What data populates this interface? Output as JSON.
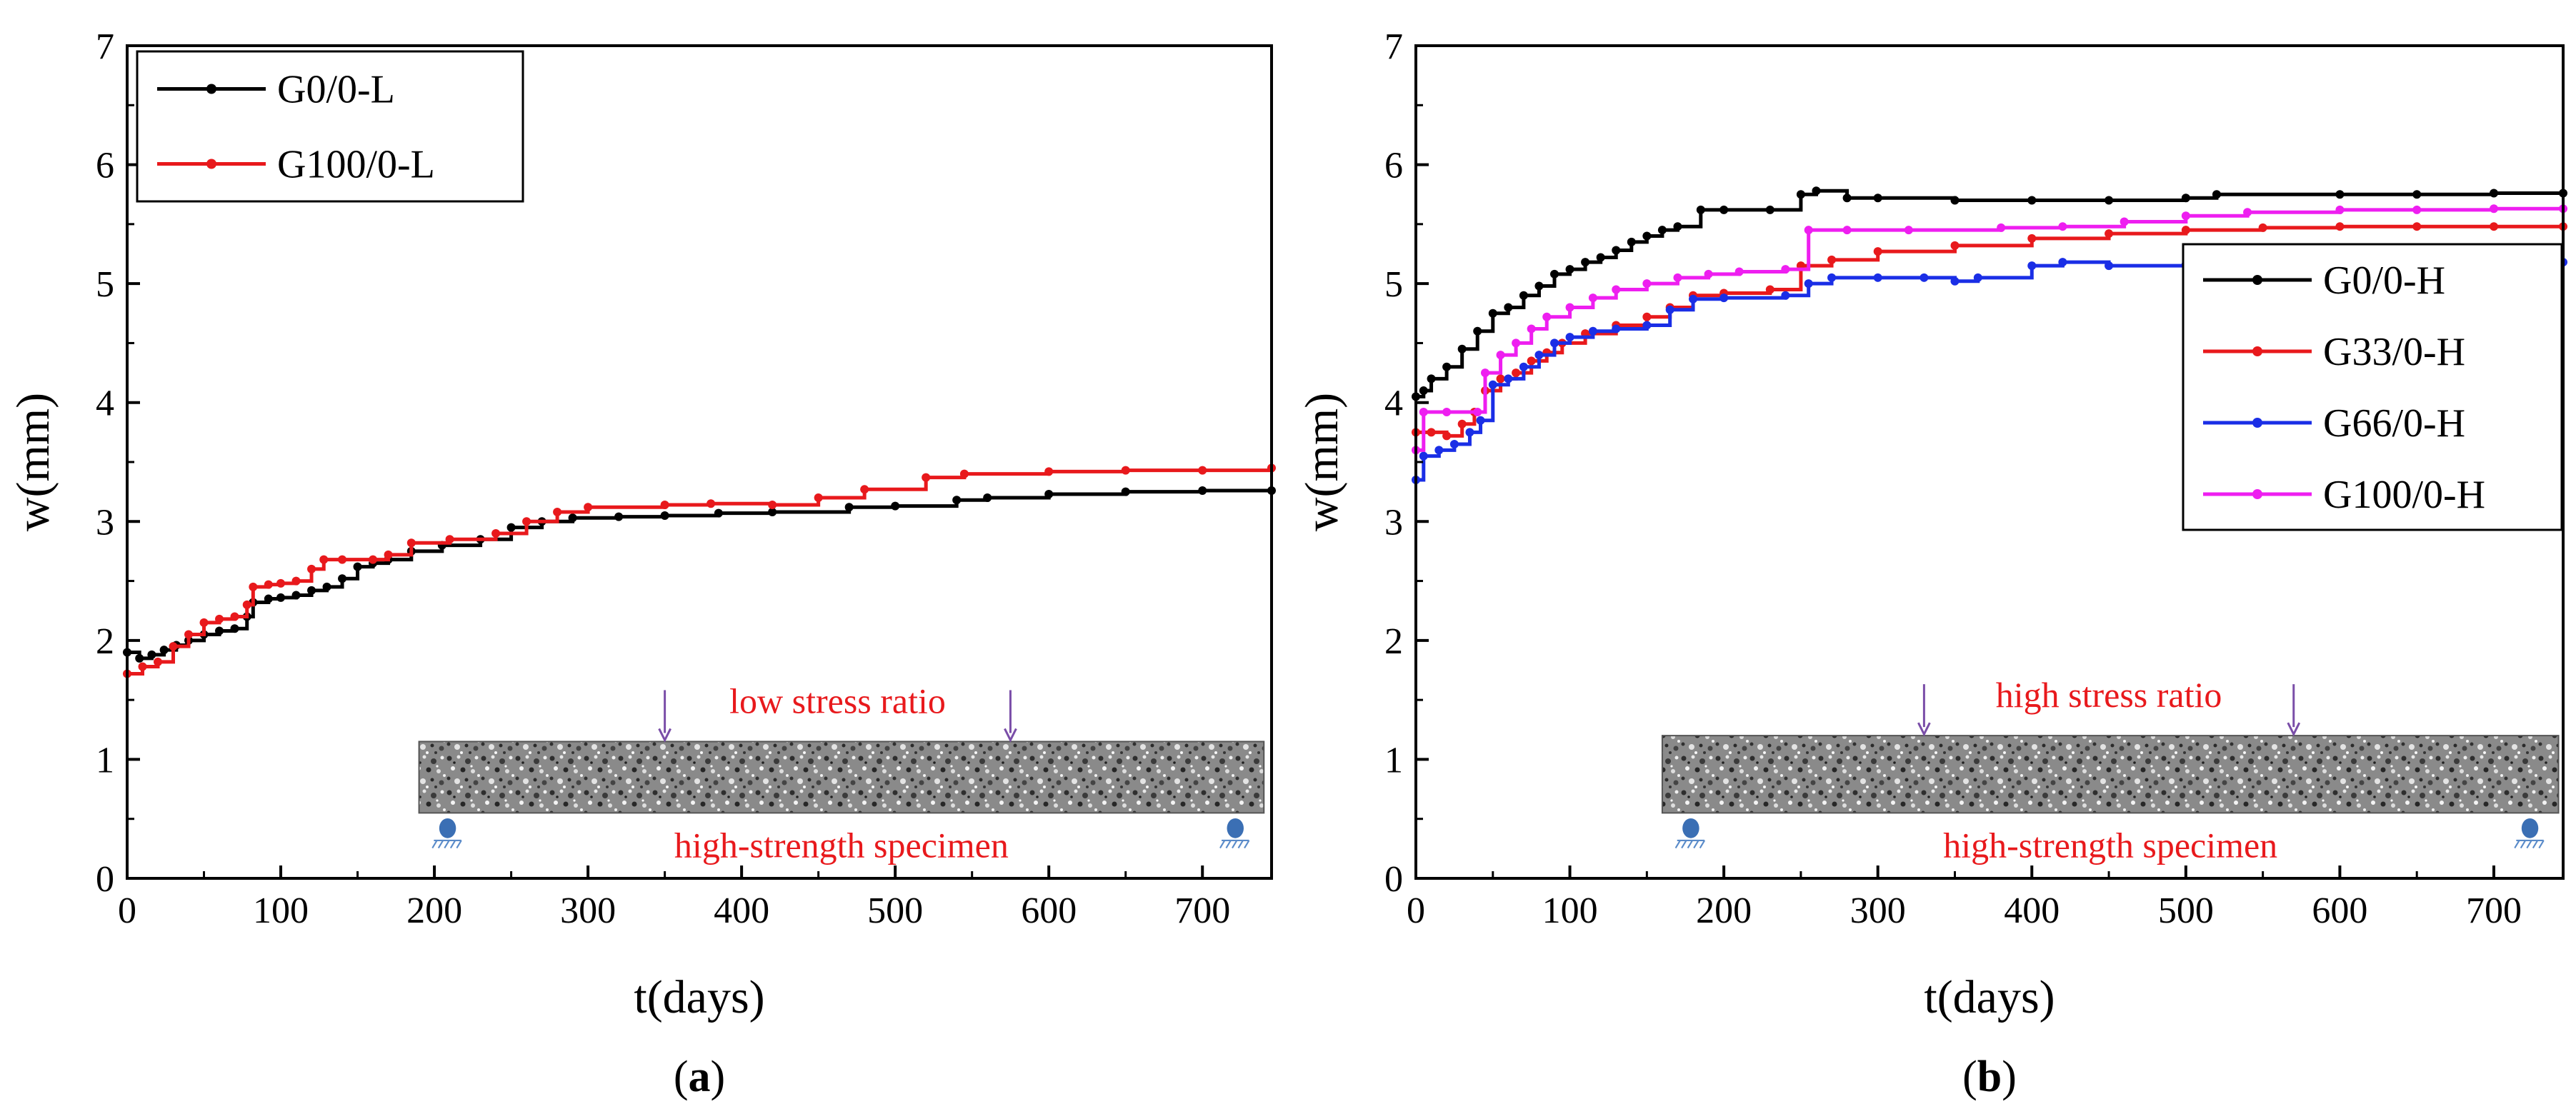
{
  "chart_data": [
    {
      "type": "line",
      "panel_label": "a",
      "xlabel": "t(days)",
      "ylabel": "w(mm)",
      "xlim": [
        0,
        745
      ],
      "ylim": [
        0,
        7
      ],
      "xticks": [
        0,
        100,
        200,
        300,
        400,
        500,
        600,
        700
      ],
      "yticks": [
        0,
        1,
        2,
        3,
        4,
        5,
        6,
        7
      ],
      "grid": false,
      "legend_position": "top-left",
      "inset": {
        "top_text": "low stress ratio",
        "bottom_text": "high-strength  specimen",
        "x_range": [
          190,
          740
        ],
        "y_range": [
          0.55,
          1.15
        ],
        "load_x": [
          350,
          575
        ]
      },
      "series": [
        {
          "name": "G0/0-L",
          "color": "#000000",
          "points": [
            [
              0,
              1.9
            ],
            [
              8,
              1.85
            ],
            [
              16,
              1.88
            ],
            [
              24,
              1.92
            ],
            [
              32,
              1.96
            ],
            [
              40,
              2.0
            ],
            [
              50,
              2.05
            ],
            [
              60,
              2.08
            ],
            [
              70,
              2.1
            ],
            [
              78,
              2.2
            ],
            [
              82,
              2.32
            ],
            [
              92,
              2.35
            ],
            [
              100,
              2.36
            ],
            [
              110,
              2.38
            ],
            [
              120,
              2.42
            ],
            [
              130,
              2.45
            ],
            [
              140,
              2.52
            ],
            [
              150,
              2.62
            ],
            [
              160,
              2.65
            ],
            [
              170,
              2.68
            ],
            [
              185,
              2.75
            ],
            [
              205,
              2.8
            ],
            [
              230,
              2.85
            ],
            [
              250,
              2.95
            ],
            [
              270,
              3.0
            ],
            [
              290,
              3.03
            ],
            [
              320,
              3.04
            ],
            [
              350,
              3.05
            ],
            [
              385,
              3.07
            ],
            [
              420,
              3.08
            ],
            [
              470,
              3.12
            ],
            [
              500,
              3.13
            ],
            [
              540,
              3.18
            ],
            [
              560,
              3.2
            ],
            [
              600,
              3.23
            ],
            [
              650,
              3.25
            ],
            [
              700,
              3.26
            ],
            [
              745,
              3.26
            ]
          ]
        },
        {
          "name": "G100/0-L",
          "color": "#e8191c",
          "points": [
            [
              0,
              1.72
            ],
            [
              10,
              1.78
            ],
            [
              20,
              1.82
            ],
            [
              30,
              1.95
            ],
            [
              40,
              2.05
            ],
            [
              50,
              2.15
            ],
            [
              60,
              2.18
            ],
            [
              70,
              2.2
            ],
            [
              78,
              2.3
            ],
            [
              82,
              2.45
            ],
            [
              92,
              2.47
            ],
            [
              100,
              2.48
            ],
            [
              110,
              2.5
            ],
            [
              120,
              2.6
            ],
            [
              128,
              2.68
            ],
            [
              140,
              2.68
            ],
            [
              160,
              2.68
            ],
            [
              170,
              2.72
            ],
            [
              185,
              2.82
            ],
            [
              210,
              2.85
            ],
            [
              240,
              2.9
            ],
            [
              260,
              3.0
            ],
            [
              280,
              3.08
            ],
            [
              300,
              3.12
            ],
            [
              350,
              3.14
            ],
            [
              380,
              3.15
            ],
            [
              420,
              3.14
            ],
            [
              450,
              3.2
            ],
            [
              480,
              3.27
            ],
            [
              520,
              3.37
            ],
            [
              545,
              3.4
            ],
            [
              600,
              3.42
            ],
            [
              650,
              3.43
            ],
            [
              700,
              3.43
            ],
            [
              745,
              3.45
            ]
          ]
        }
      ]
    },
    {
      "type": "line",
      "panel_label": "b",
      "xlabel": "t(days)",
      "ylabel": "w(mm)",
      "xlim": [
        0,
        745
      ],
      "ylim": [
        0,
        7
      ],
      "xticks": [
        0,
        100,
        200,
        300,
        400,
        500,
        600,
        700
      ],
      "yticks": [
        0,
        1,
        2,
        3,
        4,
        5,
        6,
        7
      ],
      "grid": false,
      "legend_position": "right",
      "inset": {
        "top_text": "high stress ratio",
        "bottom_text": "high-strength  specimen",
        "x_range": [
          160,
          742
        ],
        "y_range": [
          0.55,
          1.2
        ],
        "load_x": [
          330,
          570
        ]
      },
      "series": [
        {
          "name": "G0/0-H",
          "color": "#000000",
          "points": [
            [
              0,
              4.05
            ],
            [
              5,
              4.1
            ],
            [
              10,
              4.2
            ],
            [
              20,
              4.3
            ],
            [
              30,
              4.45
            ],
            [
              40,
              4.6
            ],
            [
              50,
              4.75
            ],
            [
              60,
              4.8
            ],
            [
              70,
              4.9
            ],
            [
              80,
              4.98
            ],
            [
              90,
              5.08
            ],
            [
              100,
              5.12
            ],
            [
              110,
              5.18
            ],
            [
              120,
              5.22
            ],
            [
              130,
              5.28
            ],
            [
              140,
              5.35
            ],
            [
              150,
              5.4
            ],
            [
              160,
              5.45
            ],
            [
              170,
              5.48
            ],
            [
              185,
              5.62
            ],
            [
              200,
              5.62
            ],
            [
              230,
              5.62
            ],
            [
              250,
              5.75
            ],
            [
              260,
              5.78
            ],
            [
              280,
              5.72
            ],
            [
              300,
              5.72
            ],
            [
              350,
              5.7
            ],
            [
              400,
              5.7
            ],
            [
              450,
              5.7
            ],
            [
              500,
              5.72
            ],
            [
              520,
              5.75
            ],
            [
              600,
              5.75
            ],
            [
              650,
              5.75
            ],
            [
              700,
              5.76
            ],
            [
              745,
              5.76
            ]
          ]
        },
        {
          "name": "G33/0-H",
          "color": "#e8191c",
          "points": [
            [
              0,
              3.75
            ],
            [
              10,
              3.75
            ],
            [
              20,
              3.72
            ],
            [
              30,
              3.82
            ],
            [
              38,
              3.92
            ],
            [
              45,
              4.1
            ],
            [
              55,
              4.2
            ],
            [
              65,
              4.25
            ],
            [
              75,
              4.35
            ],
            [
              85,
              4.42
            ],
            [
              95,
              4.5
            ],
            [
              110,
              4.58
            ],
            [
              130,
              4.65
            ],
            [
              150,
              4.72
            ],
            [
              165,
              4.8
            ],
            [
              180,
              4.9
            ],
            [
              200,
              4.92
            ],
            [
              230,
              4.95
            ],
            [
              250,
              5.15
            ],
            [
              270,
              5.2
            ],
            [
              300,
              5.27
            ],
            [
              350,
              5.32
            ],
            [
              400,
              5.38
            ],
            [
              450,
              5.42
            ],
            [
              500,
              5.45
            ],
            [
              550,
              5.47
            ],
            [
              600,
              5.48
            ],
            [
              650,
              5.48
            ],
            [
              700,
              5.48
            ],
            [
              745,
              5.48
            ]
          ]
        },
        {
          "name": "G66/0-H",
          "color": "#1a2ee6",
          "points": [
            [
              0,
              3.35
            ],
            [
              5,
              3.55
            ],
            [
              15,
              3.6
            ],
            [
              25,
              3.65
            ],
            [
              35,
              3.75
            ],
            [
              42,
              3.85
            ],
            [
              50,
              4.15
            ],
            [
              60,
              4.2
            ],
            [
              70,
              4.3
            ],
            [
              80,
              4.4
            ],
            [
              90,
              4.5
            ],
            [
              100,
              4.55
            ],
            [
              115,
              4.6
            ],
            [
              130,
              4.62
            ],
            [
              150,
              4.65
            ],
            [
              165,
              4.78
            ],
            [
              180,
              4.87
            ],
            [
              200,
              4.88
            ],
            [
              240,
              4.9
            ],
            [
              255,
              5.0
            ],
            [
              270,
              5.05
            ],
            [
              300,
              5.05
            ],
            [
              330,
              5.05
            ],
            [
              350,
              5.02
            ],
            [
              365,
              5.05
            ],
            [
              400,
              5.15
            ],
            [
              420,
              5.18
            ],
            [
              450,
              5.15
            ],
            [
              500,
              5.16
            ],
            [
              550,
              5.18
            ],
            [
              600,
              5.18
            ],
            [
              650,
              5.18
            ],
            [
              700,
              5.18
            ],
            [
              745,
              5.18
            ]
          ]
        },
        {
          "name": "G100/0-H",
          "color": "#ee1ef0",
          "points": [
            [
              0,
              3.6
            ],
            [
              5,
              3.92
            ],
            [
              20,
              3.92
            ],
            [
              40,
              3.92
            ],
            [
              45,
              4.25
            ],
            [
              55,
              4.4
            ],
            [
              65,
              4.5
            ],
            [
              75,
              4.62
            ],
            [
              85,
              4.72
            ],
            [
              100,
              4.8
            ],
            [
              115,
              4.88
            ],
            [
              130,
              4.95
            ],
            [
              150,
              5.0
            ],
            [
              170,
              5.05
            ],
            [
              190,
              5.08
            ],
            [
              210,
              5.1
            ],
            [
              240,
              5.12
            ],
            [
              255,
              5.45
            ],
            [
              280,
              5.45
            ],
            [
              320,
              5.45
            ],
            [
              380,
              5.47
            ],
            [
              420,
              5.48
            ],
            [
              460,
              5.52
            ],
            [
              500,
              5.57
            ],
            [
              540,
              5.6
            ],
            [
              600,
              5.62
            ],
            [
              650,
              5.62
            ],
            [
              700,
              5.63
            ],
            [
              745,
              5.63
            ]
          ]
        }
      ]
    }
  ]
}
